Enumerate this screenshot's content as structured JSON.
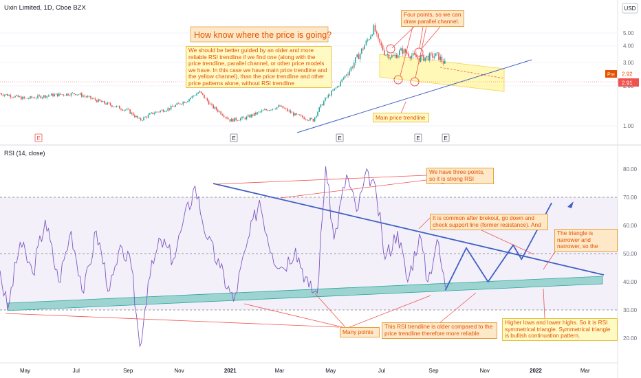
{
  "header": {
    "symbol_title": "Uxin Limited, 1D, Cboe BZX",
    "currency": "USD",
    "indicator_title": "RSI (14, close)"
  },
  "price_labels": {
    "pre_tag": "Pre",
    "pre_value": "2.92",
    "last_value": "2.91"
  },
  "colors": {
    "up": "#26a69a",
    "down": "#ef5350",
    "rsi_line": "#7e57c2",
    "trendline": "#3f5fc4",
    "channel_fill": "#fff59d",
    "support_band": "#80cbc4",
    "annotation": "#e65100"
  },
  "annotations": {
    "title": "How know where the price is going?",
    "main_note": "We should be better guided by an older and more reliable RSI trendline if we find one (along with the price trendline, parallel channel, or other price models we have. In this case we have main price trendline and the yellow channel), than the price trendline and other price patterns alone, without RSI trendline",
    "four_points": "Four points, so we can draw parallel channel.",
    "main_trendline": "Main price trendline",
    "three_points": "We have three points, so it is strong RSI trendline",
    "after_breakout": "It is common after brekout, go down and check support line (former resistance). And then up.",
    "triangle_narrow": "The triangle is narrower and narrower, so the breakout is coming",
    "many_points": "Many points",
    "older_trendline": "This RSI trendline is older compared to the price trendline therefore more reliable",
    "higher_lows": "Higher lows and lower highs. So it is RSI symmetrical triangle. Symmetrical triangle is bullish continuation pattern."
  },
  "chart_data": [
    {
      "type": "candlestick",
      "title": "Uxin Limited, 1D, Cboe BZX",
      "ylabel": "USD",
      "y_ticks": [
        "1.00",
        "2.00",
        "3.00",
        "4.00",
        "5.00"
      ],
      "y_scale": "log",
      "ylim": [
        0.8,
        6.3
      ],
      "earnings_markers": [
        "E",
        "E",
        "E",
        "E",
        "E"
      ],
      "close_path": [
        [
          "2020-04-01",
          1.75
        ],
        [
          "2020-05-01",
          1.6
        ],
        [
          "2020-06-01",
          1.7
        ],
        [
          "2020-07-01",
          1.75
        ],
        [
          "2020-08-01",
          1.5
        ],
        [
          "2020-09-01",
          1.3
        ],
        [
          "2020-09-15",
          1.1
        ],
        [
          "2020-10-01",
          1.25
        ],
        [
          "2020-10-20",
          1.35
        ],
        [
          "2020-11-10",
          1.55
        ],
        [
          "2020-11-25",
          1.8
        ],
        [
          "2020-12-10",
          1.4
        ],
        [
          "2021-01-01",
          1.1
        ],
        [
          "2021-01-20",
          1.15
        ],
        [
          "2021-02-10",
          1.3
        ],
        [
          "2021-03-01",
          1.4
        ],
        [
          "2021-03-20",
          1.2
        ],
        [
          "2021-04-10",
          1.1
        ],
        [
          "2021-04-25",
          1.6
        ],
        [
          "2021-05-10",
          2.0
        ],
        [
          "2021-05-25",
          2.7
        ],
        [
          "2021-06-05",
          3.5
        ],
        [
          "2021-06-15",
          4.5
        ],
        [
          "2021-06-22",
          5.5
        ],
        [
          "2021-06-26",
          4.4
        ],
        [
          "2021-07-05",
          3.5
        ],
        [
          "2021-07-15",
          3.3
        ],
        [
          "2021-07-25",
          3.7
        ],
        [
          "2021-08-05",
          3.4
        ],
        [
          "2021-08-15",
          3.2
        ],
        [
          "2021-08-25",
          3.3
        ],
        [
          "2021-09-05",
          3.4
        ],
        [
          "2021-09-15",
          2.91
        ]
      ]
    },
    {
      "type": "line",
      "title": "RSI (14, close)",
      "y_ticks": [
        "20.00",
        "30.00",
        "40.00",
        "50.00",
        "60.00",
        "70.00",
        "80.00"
      ],
      "ylim": [
        15,
        85
      ],
      "bands": {
        "overbought": 70,
        "middle": 50,
        "oversold": 30
      },
      "x_ticks": [
        "May",
        "Jul",
        "Sep",
        "Nov",
        "2021",
        "Mar",
        "May",
        "Jul",
        "Sep",
        "Nov",
        "2022",
        "Mar"
      ],
      "rsi_path": [
        [
          "2020-04-01",
          44
        ],
        [
          "2020-04-10",
          30
        ],
        [
          "2020-04-25",
          54
        ],
        [
          "2020-05-10",
          43
        ],
        [
          "2020-05-25",
          62
        ],
        [
          "2020-06-10",
          40
        ],
        [
          "2020-06-25",
          58
        ],
        [
          "2020-07-10",
          36
        ],
        [
          "2020-07-25",
          58
        ],
        [
          "2020-08-10",
          37
        ],
        [
          "2020-08-25",
          52
        ],
        [
          "2020-09-05",
          45
        ],
        [
          "2020-09-15",
          17
        ],
        [
          "2020-09-25",
          40
        ],
        [
          "2020-10-10",
          55
        ],
        [
          "2020-10-25",
          48
        ],
        [
          "2020-11-05",
          60
        ],
        [
          "2020-11-20",
          74
        ],
        [
          "2020-12-05",
          55
        ],
        [
          "2020-12-20",
          45
        ],
        [
          "2021-01-05",
          33
        ],
        [
          "2021-01-20",
          52
        ],
        [
          "2021-02-05",
          69
        ],
        [
          "2021-02-20",
          50
        ],
        [
          "2021-03-05",
          45
        ],
        [
          "2021-03-20",
          52
        ],
        [
          "2021-04-05",
          38
        ],
        [
          "2021-04-15",
          36
        ],
        [
          "2021-04-25",
          81
        ],
        [
          "2021-05-05",
          55
        ],
        [
          "2021-05-20",
          78
        ],
        [
          "2021-06-01",
          65
        ],
        [
          "2021-06-15",
          79
        ],
        [
          "2021-06-25",
          70
        ],
        [
          "2021-07-05",
          48
        ],
        [
          "2021-07-20",
          58
        ],
        [
          "2021-08-01",
          40
        ],
        [
          "2021-08-15",
          57
        ],
        [
          "2021-08-25",
          40
        ],
        [
          "2021-09-05",
          55
        ],
        [
          "2021-09-15",
          38
        ]
      ],
      "projection": [
        [
          "2021-09-15",
          37
        ],
        [
          "2021-10-10",
          52
        ],
        [
          "2021-11-05",
          40
        ],
        [
          "2021-12-05",
          53
        ],
        [
          "2021-12-15",
          48
        ],
        [
          "2022-01-20",
          68
        ]
      ]
    }
  ]
}
